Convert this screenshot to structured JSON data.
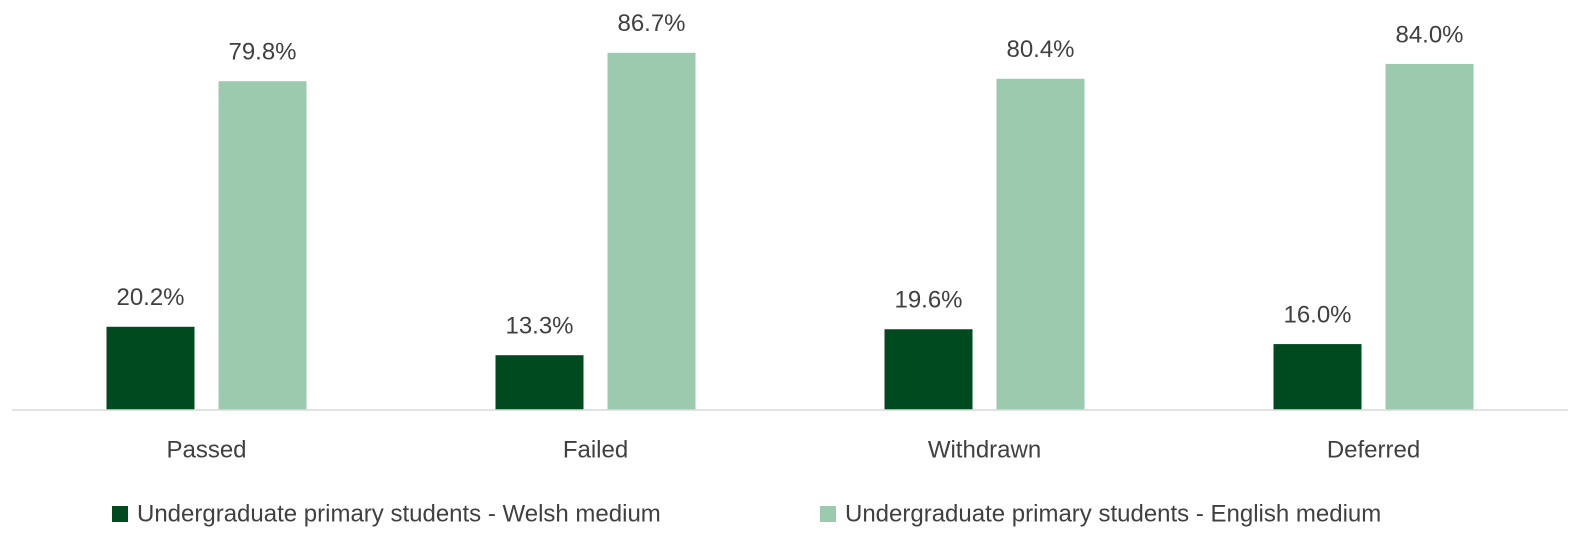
{
  "chart_data": {
    "type": "bar",
    "categories": [
      "Passed",
      "Failed",
      "Withdrawn",
      "Deferred"
    ],
    "series": [
      {
        "name": "Undergraduate primary students - Welsh medium",
        "color": "#004a1f",
        "values": [
          20.2,
          13.3,
          19.6,
          16.0
        ],
        "value_labels": [
          "20.2%",
          "13.3%",
          "19.6%",
          "16.0%"
        ]
      },
      {
        "name": "Undergraduate primary students - English medium",
        "color": "#9ccaae",
        "values": [
          79.8,
          86.7,
          80.4,
          84.0
        ],
        "value_labels": [
          "79.8%",
          "86.7%",
          "80.4%",
          "84.0%"
        ]
      }
    ],
    "legend": "bottom"
  }
}
